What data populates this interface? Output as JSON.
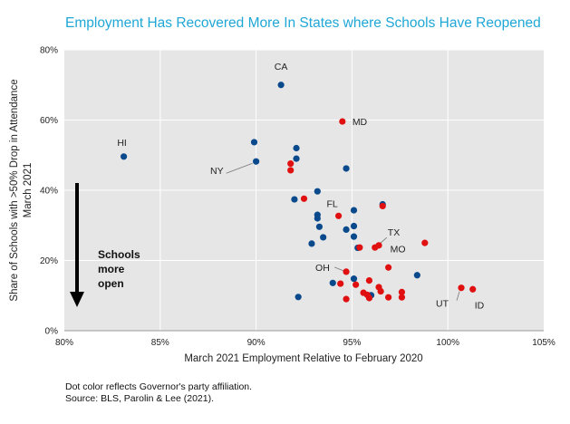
{
  "chart_data": {
    "type": "scatter",
    "title": "Employment Has Recovered More In States where Schools Have Reopened",
    "xlabel": "March 2021 Employment Relative to February 2020",
    "ylabel_line1": "Share of Schools with >50% Drop in Attendance",
    "ylabel_line2": "March 2021",
    "xlim": [
      0.8,
      1.05
    ],
    "ylim": [
      0,
      0.8
    ],
    "x_ticks": [
      0.8,
      0.85,
      0.9,
      0.95,
      1.0,
      1.05
    ],
    "x_tick_labels": [
      "80%",
      "85%",
      "90%",
      "95%",
      "100%",
      "105%"
    ],
    "y_ticks": [
      0,
      0.2,
      0.4,
      0.6,
      0.8
    ],
    "y_tick_labels": [
      "0%",
      "20%",
      "40%",
      "60%",
      "80%"
    ],
    "grid": true,
    "colors": {
      "blue": "#0a4a8c",
      "red": "#e01010",
      "plot_bg": "#e6e6e6",
      "title": "#1fa7d6"
    },
    "series": [
      {
        "color": "blue",
        "points": [
          {
            "x": 0.831,
            "y": 0.496,
            "label": "HI"
          },
          {
            "x": 0.913,
            "y": 0.7,
            "label": "CA"
          },
          {
            "x": 0.899,
            "y": 0.537
          },
          {
            "x": 0.9,
            "y": 0.482,
            "label": "NY"
          },
          {
            "x": 0.921,
            "y": 0.52
          },
          {
            "x": 0.921,
            "y": 0.49
          },
          {
            "x": 0.947,
            "y": 0.462
          },
          {
            "x": 0.932,
            "y": 0.397
          },
          {
            "x": 0.92,
            "y": 0.374
          },
          {
            "x": 0.951,
            "y": 0.343
          },
          {
            "x": 0.966,
            "y": 0.36
          },
          {
            "x": 0.932,
            "y": 0.33
          },
          {
            "x": 0.932,
            "y": 0.32
          },
          {
            "x": 0.933,
            "y": 0.296
          },
          {
            "x": 0.951,
            "y": 0.298
          },
          {
            "x": 0.947,
            "y": 0.288
          },
          {
            "x": 0.951,
            "y": 0.268
          },
          {
            "x": 0.935,
            "y": 0.266
          },
          {
            "x": 0.929,
            "y": 0.248
          },
          {
            "x": 0.953,
            "y": 0.236
          },
          {
            "x": 0.94,
            "y": 0.136
          },
          {
            "x": 0.951,
            "y": 0.148
          },
          {
            "x": 0.922,
            "y": 0.096
          },
          {
            "x": 0.96,
            "y": 0.101
          },
          {
            "x": 0.984,
            "y": 0.158
          }
        ]
      },
      {
        "color": "red",
        "points": [
          {
            "x": 0.945,
            "y": 0.596,
            "label": "MD"
          },
          {
            "x": 0.918,
            "y": 0.476
          },
          {
            "x": 0.918,
            "y": 0.457
          },
          {
            "x": 0.925,
            "y": 0.376
          },
          {
            "x": 0.966,
            "y": 0.355
          },
          {
            "x": 0.943,
            "y": 0.327,
            "label": "FL"
          },
          {
            "x": 0.962,
            "y": 0.237,
            "label": "TX"
          },
          {
            "x": 0.964,
            "y": 0.243
          },
          {
            "x": 0.954,
            "y": 0.237
          },
          {
            "x": 0.988,
            "y": 0.25
          },
          {
            "x": 0.947,
            "y": 0.168,
            "label": "OH"
          },
          {
            "x": 0.969,
            "y": 0.18,
            "label": "MO"
          },
          {
            "x": 0.944,
            "y": 0.134
          },
          {
            "x": 0.952,
            "y": 0.131
          },
          {
            "x": 0.959,
            "y": 0.143
          },
          {
            "x": 0.964,
            "y": 0.124
          },
          {
            "x": 0.965,
            "y": 0.112
          },
          {
            "x": 0.956,
            "y": 0.108
          },
          {
            "x": 0.958,
            "y": 0.102
          },
          {
            "x": 0.959,
            "y": 0.093
          },
          {
            "x": 0.947,
            "y": 0.09
          },
          {
            "x": 0.969,
            "y": 0.095
          },
          {
            "x": 0.976,
            "y": 0.095
          },
          {
            "x": 0.976,
            "y": 0.11
          },
          {
            "x": 1.007,
            "y": 0.122,
            "label": "UT"
          },
          {
            "x": 1.013,
            "y": 0.118,
            "label": "ID"
          }
        ]
      }
    ],
    "annotation_lines": [
      "Schools",
      "more",
      "open"
    ]
  },
  "footer": {
    "line1": "Dot color reflects Governor's party affiliation.",
    "line2": "Source: BLS, Parolin & Lee (2021)."
  }
}
